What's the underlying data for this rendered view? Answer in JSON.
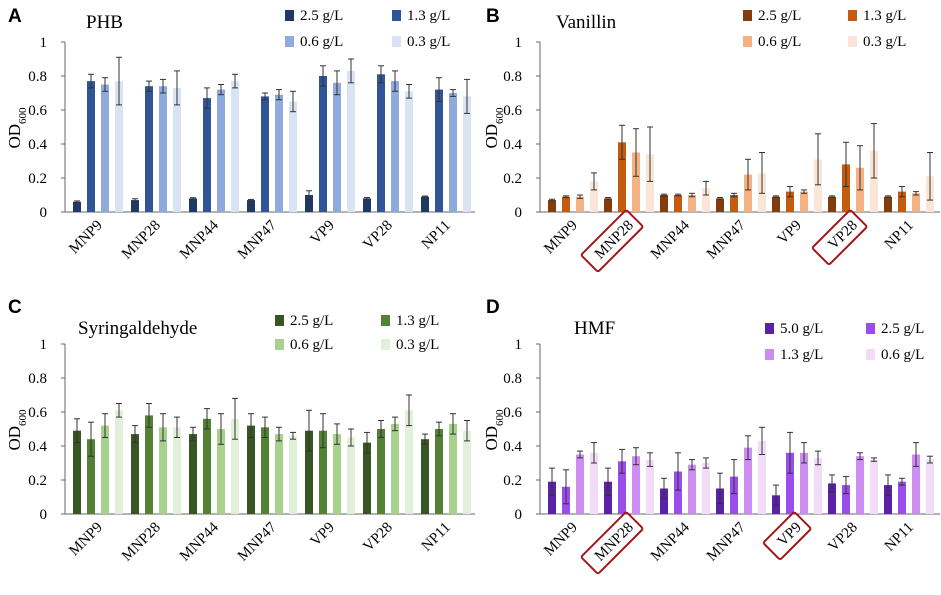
{
  "chart_data": [
    {
      "type": "bar",
      "panel": "A",
      "title": "PHB",
      "ylabel": "OD",
      "ylabel_sub": "600",
      "ylim": [
        0,
        1
      ],
      "yticks": [
        "0",
        "0.2",
        "0.4",
        "0.6",
        "0.8",
        "1"
      ],
      "categories": [
        "MNP9",
        "MNP28",
        "MNP44",
        "MNP47",
        "VP9",
        "VP28",
        "NP11"
      ],
      "highlighted": [],
      "series": [
        {
          "name": "2.5 g/L",
          "color": "#1f3864",
          "values": [
            0.06,
            0.07,
            0.08,
            0.07,
            0.1,
            0.08,
            0.09
          ],
          "errors": [
            0.005,
            0.008,
            0.004,
            0.004,
            0.025,
            0.005,
            0.004
          ]
        },
        {
          "name": "1.3 g/L",
          "color": "#2f5597",
          "values": [
            0.77,
            0.74,
            0.67,
            0.68,
            0.8,
            0.81,
            0.72
          ],
          "errors": [
            0.04,
            0.03,
            0.06,
            0.02,
            0.06,
            0.05,
            0.07
          ]
        },
        {
          "name": "0.6 g/L",
          "color": "#8faadc",
          "values": [
            0.75,
            0.74,
            0.72,
            0.69,
            0.76,
            0.77,
            0.7
          ],
          "errors": [
            0.04,
            0.04,
            0.03,
            0.03,
            0.07,
            0.06,
            0.02
          ]
        },
        {
          "name": "0.3 g/L",
          "color": "#dae3f3",
          "values": [
            0.77,
            0.73,
            0.77,
            0.65,
            0.83,
            0.71,
            0.68
          ],
          "errors": [
            0.14,
            0.1,
            0.04,
            0.06,
            0.07,
            0.04,
            0.1
          ]
        }
      ]
    },
    {
      "type": "bar",
      "panel": "B",
      "title": "Vanillin",
      "ylabel": "OD",
      "ylabel_sub": "600",
      "ylim": [
        0,
        1
      ],
      "yticks": [
        "0",
        "0.2",
        "0.4",
        "0.6",
        "0.8",
        "1"
      ],
      "categories": [
        "MNP9",
        "MNP28",
        "MNP44",
        "MNP47",
        "VP9",
        "VP28",
        "NP11"
      ],
      "highlighted": [
        "MNP28",
        "VP28"
      ],
      "series": [
        {
          "name": "2.5 g/L",
          "color": "#843c0c",
          "values": [
            0.07,
            0.08,
            0.1,
            0.08,
            0.09,
            0.09,
            0.09
          ],
          "errors": [
            0.005,
            0.005,
            0.005,
            0.005,
            0.005,
            0.005,
            0.005
          ]
        },
        {
          "name": "1.3 g/L",
          "color": "#c55a11",
          "values": [
            0.09,
            0.41,
            0.1,
            0.1,
            0.12,
            0.28,
            0.12
          ],
          "errors": [
            0.005,
            0.1,
            0.005,
            0.01,
            0.03,
            0.13,
            0.03
          ]
        },
        {
          "name": "0.6 g/L",
          "color": "#f4b183",
          "values": [
            0.09,
            0.35,
            0.1,
            0.22,
            0.12,
            0.26,
            0.11
          ],
          "errors": [
            0.01,
            0.14,
            0.01,
            0.09,
            0.01,
            0.13,
            0.01
          ]
        },
        {
          "name": "0.3 g/L",
          "color": "#fbe5d6",
          "values": [
            0.18,
            0.34,
            0.14,
            0.23,
            0.31,
            0.36,
            0.21
          ],
          "errors": [
            0.05,
            0.16,
            0.04,
            0.12,
            0.15,
            0.16,
            0.14
          ]
        }
      ]
    },
    {
      "type": "bar",
      "panel": "C",
      "title": "Syringaldehyde",
      "ylabel": "OD",
      "ylabel_sub": "600",
      "ylim": [
        0,
        1
      ],
      "yticks": [
        "0",
        "0.2",
        "0.4",
        "0.6",
        "0.8",
        "1"
      ],
      "categories": [
        "MNP9",
        "MNP28",
        "MNP44",
        "MNP47",
        "VP9",
        "VP28",
        "NP11"
      ],
      "highlighted": [],
      "series": [
        {
          "name": "2.5 g/L",
          "color": "#375623",
          "values": [
            0.49,
            0.47,
            0.47,
            0.52,
            0.49,
            0.42,
            0.44
          ],
          "errors": [
            0.07,
            0.05,
            0.04,
            0.07,
            0.12,
            0.06,
            0.03
          ]
        },
        {
          "name": "1.3 g/L",
          "color": "#548235",
          "values": [
            0.44,
            0.58,
            0.56,
            0.51,
            0.49,
            0.5,
            0.5
          ],
          "errors": [
            0.1,
            0.07,
            0.06,
            0.06,
            0.1,
            0.05,
            0.04
          ]
        },
        {
          "name": "0.6 g/L",
          "color": "#a9d18e",
          "values": [
            0.52,
            0.51,
            0.5,
            0.47,
            0.47,
            0.53,
            0.53
          ],
          "errors": [
            0.07,
            0.08,
            0.09,
            0.04,
            0.06,
            0.04,
            0.06
          ]
        },
        {
          "name": "0.3 g/L",
          "color": "#e2f0d9",
          "values": [
            0.61,
            0.51,
            0.56,
            0.46,
            0.45,
            0.61,
            0.49
          ],
          "errors": [
            0.04,
            0.06,
            0.12,
            0.02,
            0.05,
            0.09,
            0.06
          ]
        }
      ]
    },
    {
      "type": "bar",
      "panel": "D",
      "title": "HMF",
      "ylabel": "OD",
      "ylabel_sub": "600",
      "ylim": [
        0,
        1
      ],
      "yticks": [
        "0",
        "0.2",
        "0.4",
        "0.6",
        "0.8",
        "1"
      ],
      "categories": [
        "MNP9",
        "MNP28",
        "MNP44",
        "MNP47",
        "VP9",
        "VP28",
        "NP11"
      ],
      "highlighted": [
        "MNP28",
        "VP9"
      ],
      "series": [
        {
          "name": "5.0 g/L",
          "color": "#5b21a6",
          "values": [
            0.19,
            0.19,
            0.15,
            0.15,
            0.11,
            0.18,
            0.17
          ],
          "errors": [
            0.08,
            0.08,
            0.06,
            0.09,
            0.06,
            0.05,
            0.06
          ]
        },
        {
          "name": "2.5 g/L",
          "color": "#9a4dea",
          "values": [
            0.16,
            0.31,
            0.25,
            0.22,
            0.36,
            0.17,
            0.19
          ],
          "errors": [
            0.1,
            0.07,
            0.11,
            0.1,
            0.12,
            0.05,
            0.02
          ]
        },
        {
          "name": "1.3 g/L",
          "color": "#cd8ef3",
          "values": [
            0.35,
            0.34,
            0.29,
            0.39,
            0.36,
            0.34,
            0.35
          ],
          "errors": [
            0.02,
            0.05,
            0.03,
            0.07,
            0.06,
            0.02,
            0.07
          ]
        },
        {
          "name": "0.6 g/L",
          "color": "#f1dcf8",
          "values": [
            0.36,
            0.32,
            0.3,
            0.43,
            0.33,
            0.32,
            0.32
          ],
          "errors": [
            0.06,
            0.04,
            0.03,
            0.08,
            0.04,
            0.01,
            0.02
          ]
        }
      ]
    }
  ]
}
